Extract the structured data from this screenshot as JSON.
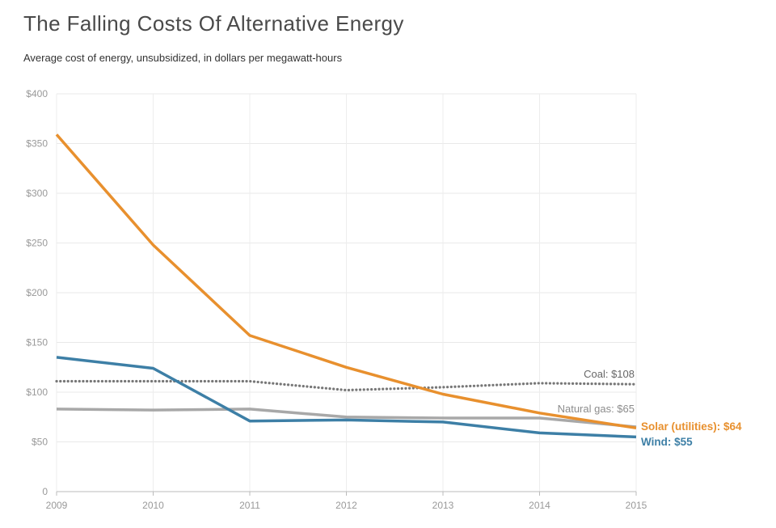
{
  "title": "The Falling Costs Of Alternative Energy",
  "subtitle": "Average cost of energy, unsubsidized, in dollars per megawatt-hours",
  "chart_data": {
    "type": "line",
    "title": "The Falling Costs Of Alternative Energy",
    "subtitle": "Average cost of energy, unsubsidized, in dollars per megawatt-hours",
    "xlabel": "",
    "ylabel": "",
    "x": [
      2009,
      2010,
      2011,
      2012,
      2013,
      2014,
      2015
    ],
    "x_tick_labels": [
      "2009",
      "2010",
      "2011",
      "2012",
      "2013",
      "2014",
      "2015"
    ],
    "ylim": [
      0,
      400
    ],
    "y_ticks": [
      0,
      50,
      100,
      150,
      200,
      250,
      300,
      350,
      400
    ],
    "y_tick_labels": [
      "0",
      "$50",
      "$100",
      "$150",
      "$200",
      "$250",
      "$300",
      "$350",
      "$400"
    ],
    "grid": true,
    "series": [
      {
        "key": "solar",
        "name": "Solar (utilities)",
        "values": [
          359,
          248,
          157,
          125,
          98,
          79,
          64
        ],
        "color": "#e8902e",
        "style": "solid",
        "end_label": "Solar (utilities): $64",
        "label_bold": true
      },
      {
        "key": "coal",
        "name": "Coal",
        "values": [
          111,
          111,
          111,
          102,
          105,
          109,
          108
        ],
        "color": "#777777",
        "style": "dotted",
        "end_label": "Coal: $108",
        "label_bold": false
      },
      {
        "key": "gas",
        "name": "Natural gas",
        "values": [
          83,
          82,
          83,
          75,
          74,
          74,
          65
        ],
        "color": "#a8a8a8",
        "style": "solid",
        "end_label": "Natural gas: $65",
        "label_bold": false
      },
      {
        "key": "wind",
        "name": "Wind",
        "values": [
          135,
          124,
          71,
          72,
          70,
          59,
          55
        ],
        "color": "#3d7fa6",
        "style": "solid",
        "end_label": "Wind: $55",
        "label_bold": true
      }
    ]
  }
}
